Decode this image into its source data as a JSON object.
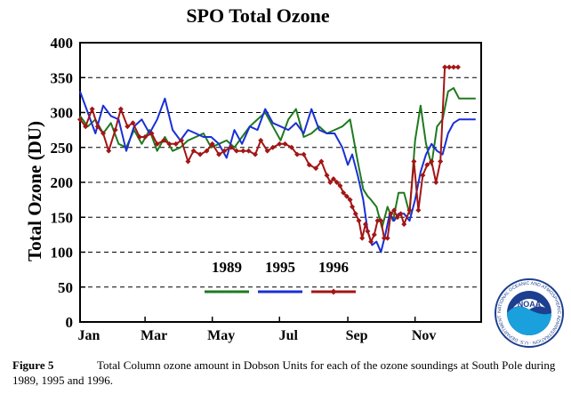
{
  "chart_data": {
    "type": "line",
    "title": "SPO Total Ozone",
    "ylabel": "Total Ozone (DU)",
    "xlabel": "",
    "ylim": [
      0,
      400
    ],
    "yticks": [
      0,
      50,
      100,
      150,
      200,
      250,
      300,
      350,
      400
    ],
    "xlim": [
      1,
      365
    ],
    "xticks": [
      {
        "day": 1,
        "label": "Jan"
      },
      {
        "day": 60,
        "label": "Mar"
      },
      {
        "day": 121,
        "label": "May"
      },
      {
        "day": 182,
        "label": "Jul"
      },
      {
        "day": 244,
        "label": "Sep"
      },
      {
        "day": 305,
        "label": "Nov"
      }
    ],
    "grid": "horizontal dashed",
    "legend_position": "lower-center",
    "series": [
      {
        "name": "1989",
        "color": "#1f7a1f",
        "marker": "none",
        "x": [
          1,
          8,
          15,
          22,
          29,
          36,
          43,
          50,
          57,
          64,
          71,
          78,
          85,
          92,
          99,
          106,
          113,
          120,
          127,
          134,
          141,
          148,
          155,
          162,
          169,
          176,
          183,
          190,
          197,
          204,
          211,
          218,
          225,
          232,
          239,
          246,
          253,
          258,
          262,
          265,
          270,
          275,
          280,
          285,
          290,
          295,
          300,
          305,
          310,
          315,
          320,
          325,
          330,
          335,
          340,
          345,
          350,
          355,
          360
        ],
        "y": [
          295,
          280,
          290,
          270,
          285,
          255,
          250,
          275,
          255,
          275,
          245,
          265,
          245,
          250,
          260,
          265,
          270,
          250,
          255,
          260,
          250,
          265,
          280,
          290,
          300,
          280,
          260,
          290,
          305,
          265,
          270,
          280,
          270,
          275,
          280,
          290,
          230,
          190,
          180,
          175,
          165,
          135,
          165,
          145,
          185,
          185,
          155,
          260,
          310,
          255,
          225,
          280,
          290,
          330,
          335,
          320,
          320,
          320,
          320
        ]
      },
      {
        "name": "1995",
        "color": "#1a2fd6",
        "marker": "none",
        "x": [
          1,
          8,
          15,
          22,
          29,
          36,
          43,
          50,
          57,
          64,
          71,
          78,
          85,
          92,
          99,
          106,
          113,
          120,
          127,
          134,
          141,
          148,
          155,
          162,
          169,
          176,
          183,
          190,
          197,
          204,
          211,
          218,
          225,
          232,
          239,
          244,
          248,
          253,
          258,
          262,
          266,
          270,
          274,
          278,
          282,
          286,
          290,
          295,
          300,
          305,
          310,
          315,
          320,
          325,
          330,
          335,
          340,
          345,
          350,
          355,
          360
        ],
        "y": [
          330,
          300,
          270,
          310,
          295,
          290,
          245,
          280,
          290,
          270,
          290,
          320,
          275,
          260,
          275,
          270,
          265,
          265,
          255,
          235,
          275,
          255,
          280,
          275,
          305,
          285,
          280,
          275,
          285,
          270,
          305,
          275,
          270,
          270,
          250,
          225,
          240,
          210,
          175,
          130,
          110,
          115,
          100,
          125,
          155,
          145,
          155,
          155,
          145,
          175,
          215,
          240,
          255,
          245,
          240,
          270,
          285,
          290,
          290,
          290,
          290
        ]
      },
      {
        "name": "1996",
        "color": "#a31515",
        "marker": "diamond",
        "x": [
          1,
          6,
          12,
          17,
          22,
          27,
          33,
          38,
          44,
          49,
          55,
          60,
          66,
          71,
          77,
          82,
          88,
          93,
          99,
          104,
          110,
          116,
          121,
          127,
          132,
          138,
          143,
          149,
          154,
          160,
          165,
          171,
          176,
          182,
          187,
          193,
          198,
          204,
          209,
          215,
          220,
          225,
          228,
          231,
          234,
          237,
          240,
          243,
          246,
          248,
          251,
          254,
          257,
          260,
          262,
          265,
          268,
          271,
          274,
          277,
          280,
          283,
          286,
          289,
          292,
          295,
          300,
          304,
          308,
          312,
          316,
          320,
          324,
          328,
          332,
          336,
          340,
          344
        ],
        "y": [
          290,
          280,
          305,
          280,
          270,
          245,
          275,
          305,
          280,
          285,
          265,
          265,
          270,
          255,
          260,
          255,
          255,
          260,
          230,
          245,
          240,
          245,
          255,
          240,
          245,
          250,
          245,
          245,
          245,
          240,
          260,
          245,
          250,
          255,
          255,
          250,
          240,
          240,
          225,
          220,
          230,
          210,
          200,
          205,
          200,
          195,
          185,
          180,
          175,
          165,
          155,
          145,
          120,
          140,
          130,
          115,
          125,
          145,
          145,
          120,
          120,
          155,
          160,
          150,
          155,
          140,
          160,
          230,
          160,
          210,
          225,
          230,
          200,
          230,
          365,
          365,
          365,
          365
        ]
      }
    ]
  },
  "figure_caption": {
    "label": "Figure 5",
    "text": "Total Column ozone amount in Dobson Units for each of the ozone soundings at South Pole during 1989, 1995 and 1996."
  },
  "logo": {
    "text": "NOAA",
    "ring_text": "NATIONAL OCEANIC AND ATMOSPHERIC ADMINISTRATION · U.S. DEPARTMENT OF COMMERCE",
    "icon": "noaa-seal-icon"
  }
}
